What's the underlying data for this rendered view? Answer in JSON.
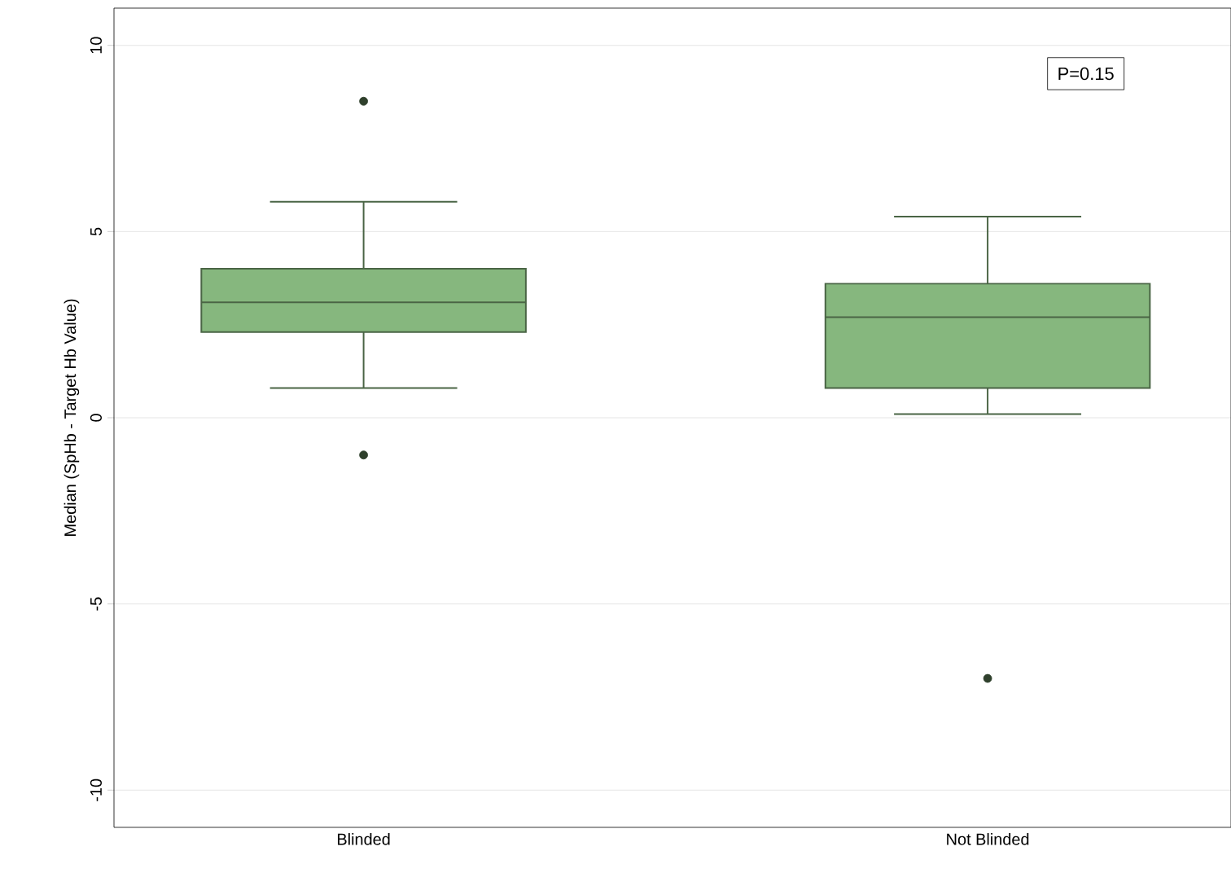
{
  "chart_data": {
    "type": "box",
    "categories": [
      "Blinded",
      "Not Blinded"
    ],
    "ylabel": "Median (SpHb - Target Hb Value)",
    "series": [
      {
        "color": "#86b77e",
        "boxes": [
          {
            "low": 0.8,
            "q1": 2.3,
            "median": 3.1,
            "q3": 4.0,
            "high": 5.8,
            "outliers": [
              8.5,
              -1.0
            ]
          },
          {
            "low": 0.1,
            "q1": 0.8,
            "median": 2.7,
            "q3": 3.6,
            "high": 5.4,
            "outliers": [
              -7.0
            ]
          }
        ]
      }
    ],
    "ylim": [
      -11,
      11
    ],
    "yticks": [
      -10,
      -5,
      0,
      5,
      10
    ],
    "grid": "y",
    "marker": "circle",
    "annotations": [
      "P=0.15"
    ]
  }
}
